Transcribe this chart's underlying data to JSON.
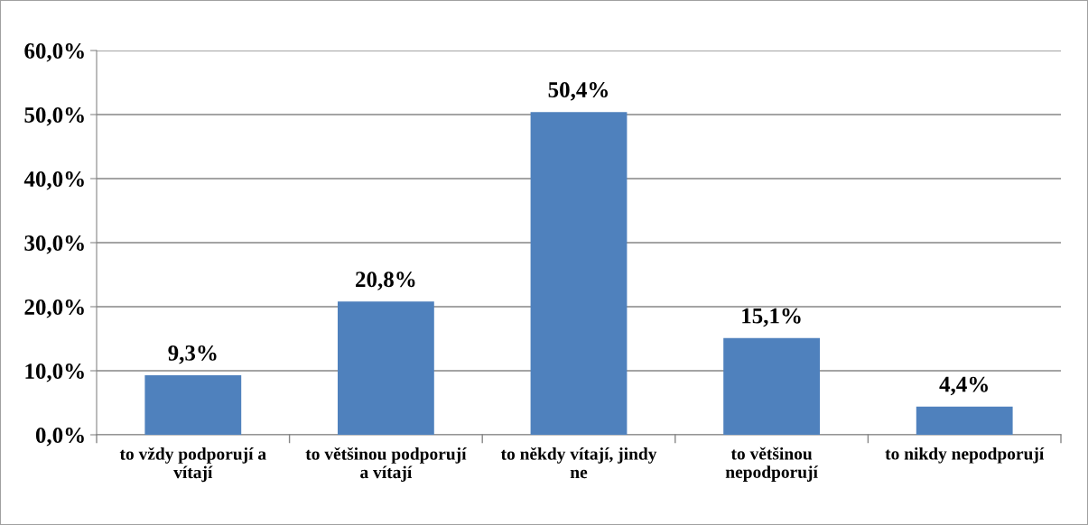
{
  "chart_data": {
    "type": "bar",
    "categories": [
      "to vždy podporují a\nvítají",
      "to většinou podporují\na vítají",
      "to někdy vítají, jindy\nne",
      "to většinou\nnepodporují",
      "to nikdy nepodporují"
    ],
    "values": [
      9.3,
      20.8,
      50.4,
      15.1,
      4.4
    ],
    "value_labels": [
      "9,3%",
      "20,8%",
      "50,4%",
      "15,1%",
      "4,4%"
    ],
    "color": "#4f81bd",
    "ylim": [
      0,
      60
    ],
    "yticks": [
      {
        "value": 0,
        "label": "0,0%"
      },
      {
        "value": 10,
        "label": "10,0%"
      },
      {
        "value": 20,
        "label": "20,0%"
      },
      {
        "value": 30,
        "label": "30,0%"
      },
      {
        "value": 40,
        "label": "40,0%"
      },
      {
        "value": 50,
        "label": "50,0%"
      },
      {
        "value": 60,
        "label": "60,0%"
      }
    ],
    "grid": "y"
  }
}
